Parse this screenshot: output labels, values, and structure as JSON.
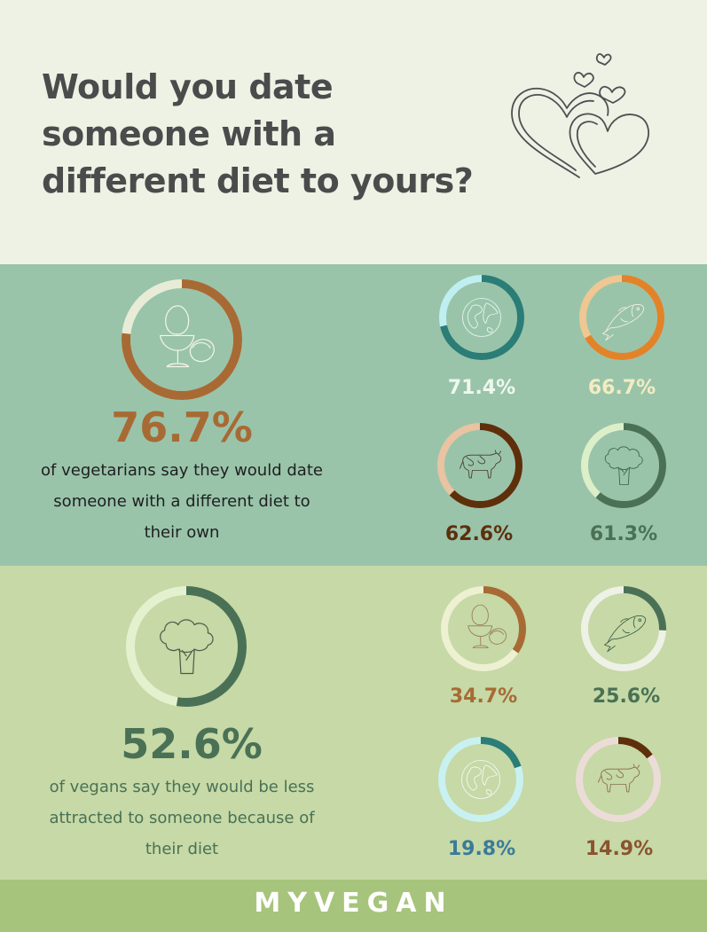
{
  "title": "Would you date someone with a different diet to yours?",
  "brand": "MYVEGAN",
  "colors": {
    "top_bg": "#edf2e5",
    "vegetarian_band_bg": "#99c4aa",
    "vegan_band_bg": "#c6d9a6",
    "footer_bg": "#a6c47b",
    "title_text": "#4a4c4c"
  },
  "vegetarians": {
    "main": {
      "value": 76.7,
      "label": "76.7%",
      "icon": "egg-cup-icon",
      "color": "#a86a34",
      "track": "#e8ecd6",
      "description": "of vegetarians say they would date someone with a different diet to their own",
      "description_lines": [
        "of vegetarians say they would date",
        "someone with a different diet to",
        "their own"
      ]
    },
    "breakdown": [
      {
        "value": 71.4,
        "label": "71.4%",
        "icon": "globe-icon",
        "color": "#2b7d76",
        "track": "#bfeff0",
        "label_color": "#eff8ee"
      },
      {
        "value": 66.7,
        "label": "66.7%",
        "icon": "fish-icon",
        "color": "#e2832a",
        "track": "#eec792",
        "label_color": "#f3ecc1"
      },
      {
        "value": 62.6,
        "label": "62.6%",
        "icon": "cow-icon",
        "color": "#5e2f0b",
        "track": "#e9c3a2",
        "label_color": "#5e2f0b"
      },
      {
        "value": 61.3,
        "label": "61.3%",
        "icon": "broccoli-icon",
        "color": "#4a7155",
        "track": "#dcefc8",
        "label_color": "#4a7155"
      }
    ]
  },
  "vegans": {
    "main": {
      "value": 52.6,
      "label": "52.6%",
      "icon": "broccoli-icon",
      "color": "#4a7155",
      "track": "#e3f1cf",
      "description": "of vegans say they would be less attracted to someone because of their diet",
      "description_lines": [
        "of vegans say they would be less",
        "attracted to someone because of",
        "their diet"
      ]
    },
    "breakdown": [
      {
        "value": 34.7,
        "label": "34.7%",
        "icon": "egg-cup-icon",
        "color": "#a86a34",
        "track": "#eef0d2",
        "label_color": "#a86a34"
      },
      {
        "value": 25.6,
        "label": "25.6%",
        "icon": "fish-icon",
        "color": "#4a7155",
        "track": "#eef1e6",
        "label_color": "#4a7155"
      },
      {
        "value": 19.8,
        "label": "19.8%",
        "icon": "globe-icon",
        "color": "#2b7d76",
        "track": "#c9f1f1",
        "label_color": "#3a7b9a"
      },
      {
        "value": 14.9,
        "label": "14.9%",
        "icon": "cow-icon",
        "color": "#5e2f0b",
        "track": "#ecdcd8",
        "label_color": "#8a5430"
      }
    ]
  },
  "chart_data": {
    "type": "pie",
    "subtype": "donut",
    "categories": [
      "vegetarians",
      "vegetarians: globe",
      "vegetarians: fish",
      "vegetarians: cow",
      "vegetarians: broccoli",
      "vegans",
      "vegans: egg",
      "vegans: fish",
      "vegans: globe",
      "vegans: cow"
    ],
    "values": [
      76.7,
      71.4,
      66.7,
      62.6,
      61.3,
      52.6,
      34.7,
      25.6,
      19.8,
      14.9
    ],
    "unit": "%",
    "title": "Would you date someone with a different diet to yours?"
  }
}
